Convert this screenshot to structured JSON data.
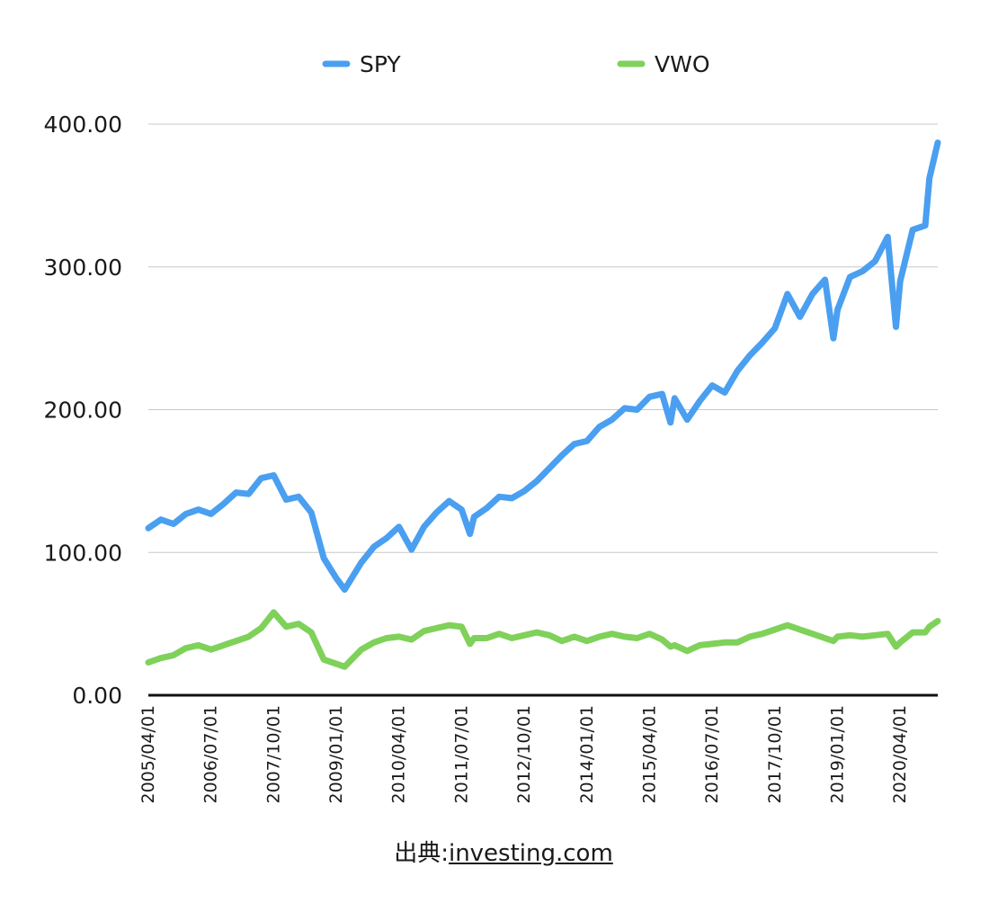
{
  "chart_data": {
    "type": "line",
    "ylim": [
      0,
      400
    ],
    "y_ticks": [
      "0.00",
      "100.00",
      "200.00",
      "300.00",
      "400.00"
    ],
    "x_tick_labels": [
      "2005/04/01",
      "2006/07/01",
      "2007/10/01",
      "2009/01/01",
      "2010/04/01",
      "2011/07/01",
      "2012/10/01",
      "2014/01/01",
      "2015/04/01",
      "2016/07/01",
      "2017/10/01",
      "2019/01/01",
      "2020/04/01"
    ],
    "x_start": "2005/04/01",
    "x_end": "2021/01/01",
    "legend_position": "top",
    "grid": true,
    "series": [
      {
        "name": "SPY",
        "color": "#4a9ff0",
        "points": [
          [
            "2005/04/01",
            117
          ],
          [
            "2005/07/01",
            123
          ],
          [
            "2005/10/01",
            120
          ],
          [
            "2006/01/01",
            127
          ],
          [
            "2006/04/01",
            130
          ],
          [
            "2006/07/01",
            127
          ],
          [
            "2006/10/01",
            134
          ],
          [
            "2007/01/01",
            142
          ],
          [
            "2007/04/01",
            141
          ],
          [
            "2007/07/01",
            152
          ],
          [
            "2007/10/01",
            154
          ],
          [
            "2008/01/01",
            137
          ],
          [
            "2008/04/01",
            139
          ],
          [
            "2008/07/01",
            128
          ],
          [
            "2008/10/01",
            96
          ],
          [
            "2009/01/01",
            82
          ],
          [
            "2009/03/01",
            74
          ],
          [
            "2009/07/01",
            93
          ],
          [
            "2009/10/01",
            104
          ],
          [
            "2010/01/01",
            110
          ],
          [
            "2010/04/01",
            118
          ],
          [
            "2010/07/01",
            102
          ],
          [
            "2010/10/01",
            118
          ],
          [
            "2011/01/01",
            128
          ],
          [
            "2011/04/01",
            136
          ],
          [
            "2011/07/01",
            130
          ],
          [
            "2011/09/01",
            113
          ],
          [
            "2011/10/01",
            125
          ],
          [
            "2012/01/01",
            131
          ],
          [
            "2012/04/01",
            139
          ],
          [
            "2012/07/01",
            138
          ],
          [
            "2012/10/01",
            143
          ],
          [
            "2013/01/01",
            150
          ],
          [
            "2013/04/01",
            159
          ],
          [
            "2013/07/01",
            168
          ],
          [
            "2013/10/01",
            176
          ],
          [
            "2014/01/01",
            178
          ],
          [
            "2014/04/01",
            188
          ],
          [
            "2014/07/01",
            193
          ],
          [
            "2014/10/01",
            201
          ],
          [
            "2015/01/01",
            200
          ],
          [
            "2015/04/01",
            209
          ],
          [
            "2015/07/01",
            211
          ],
          [
            "2015/09/01",
            191
          ],
          [
            "2015/10/01",
            208
          ],
          [
            "2016/01/01",
            193
          ],
          [
            "2016/04/01",
            206
          ],
          [
            "2016/07/01",
            217
          ],
          [
            "2016/10/01",
            212
          ],
          [
            "2017/01/01",
            227
          ],
          [
            "2017/04/01",
            238
          ],
          [
            "2017/07/01",
            247
          ],
          [
            "2017/10/01",
            257
          ],
          [
            "2018/01/01",
            281
          ],
          [
            "2018/04/01",
            265
          ],
          [
            "2018/07/01",
            281
          ],
          [
            "2018/10/01",
            291
          ],
          [
            "2018/12/01",
            250
          ],
          [
            "2019/01/01",
            270
          ],
          [
            "2019/04/01",
            293
          ],
          [
            "2019/07/01",
            297
          ],
          [
            "2019/10/01",
            304
          ],
          [
            "2020/01/01",
            321
          ],
          [
            "2020/03/01",
            258
          ],
          [
            "2020/04/01",
            290
          ],
          [
            "2020/07/01",
            326
          ],
          [
            "2020/10/01",
            329
          ],
          [
            "2020/11/01",
            362
          ],
          [
            "2021/01/01",
            387
          ]
        ]
      },
      {
        "name": "VWO",
        "color": "#7fd15a",
        "points": [
          [
            "2005/04/01",
            23
          ],
          [
            "2005/07/01",
            26
          ],
          [
            "2005/10/01",
            28
          ],
          [
            "2006/01/01",
            33
          ],
          [
            "2006/04/01",
            35
          ],
          [
            "2006/07/01",
            32
          ],
          [
            "2006/10/01",
            35
          ],
          [
            "2007/01/01",
            38
          ],
          [
            "2007/04/01",
            41
          ],
          [
            "2007/07/01",
            47
          ],
          [
            "2007/10/01",
            58
          ],
          [
            "2008/01/01",
            48
          ],
          [
            "2008/04/01",
            50
          ],
          [
            "2008/07/01",
            44
          ],
          [
            "2008/10/01",
            25
          ],
          [
            "2009/01/01",
            22
          ],
          [
            "2009/03/01",
            20
          ],
          [
            "2009/07/01",
            32
          ],
          [
            "2009/10/01",
            37
          ],
          [
            "2010/01/01",
            40
          ],
          [
            "2010/04/01",
            41
          ],
          [
            "2010/07/01",
            39
          ],
          [
            "2010/10/01",
            45
          ],
          [
            "2011/01/01",
            47
          ],
          [
            "2011/04/01",
            49
          ],
          [
            "2011/07/01",
            48
          ],
          [
            "2011/09/01",
            36
          ],
          [
            "2011/10/01",
            40
          ],
          [
            "2012/01/01",
            40
          ],
          [
            "2012/04/01",
            43
          ],
          [
            "2012/07/01",
            40
          ],
          [
            "2012/10/01",
            42
          ],
          [
            "2013/01/01",
            44
          ],
          [
            "2013/04/01",
            42
          ],
          [
            "2013/07/01",
            38
          ],
          [
            "2013/10/01",
            41
          ],
          [
            "2014/01/01",
            38
          ],
          [
            "2014/04/01",
            41
          ],
          [
            "2014/07/01",
            43
          ],
          [
            "2014/10/01",
            41
          ],
          [
            "2015/01/01",
            40
          ],
          [
            "2015/04/01",
            43
          ],
          [
            "2015/07/01",
            39
          ],
          [
            "2015/09/01",
            34
          ],
          [
            "2015/10/01",
            35
          ],
          [
            "2016/01/01",
            31
          ],
          [
            "2016/04/01",
            35
          ],
          [
            "2016/07/01",
            36
          ],
          [
            "2016/10/01",
            37
          ],
          [
            "2017/01/01",
            37
          ],
          [
            "2017/04/01",
            41
          ],
          [
            "2017/07/01",
            43
          ],
          [
            "2017/10/01",
            46
          ],
          [
            "2018/01/01",
            49
          ],
          [
            "2018/04/01",
            46
          ],
          [
            "2018/07/01",
            43
          ],
          [
            "2018/10/01",
            40
          ],
          [
            "2018/12/01",
            38
          ],
          [
            "2019/01/01",
            41
          ],
          [
            "2019/04/01",
            42
          ],
          [
            "2019/07/01",
            41
          ],
          [
            "2019/10/01",
            42
          ],
          [
            "2020/01/01",
            43
          ],
          [
            "2020/03/01",
            34
          ],
          [
            "2020/04/01",
            37
          ],
          [
            "2020/07/01",
            44
          ],
          [
            "2020/10/01",
            44
          ],
          [
            "2020/11/01",
            48
          ],
          [
            "2021/01/01",
            52
          ]
        ]
      }
    ]
  },
  "source": {
    "prefix": "出典:",
    "link": "investing.com"
  }
}
